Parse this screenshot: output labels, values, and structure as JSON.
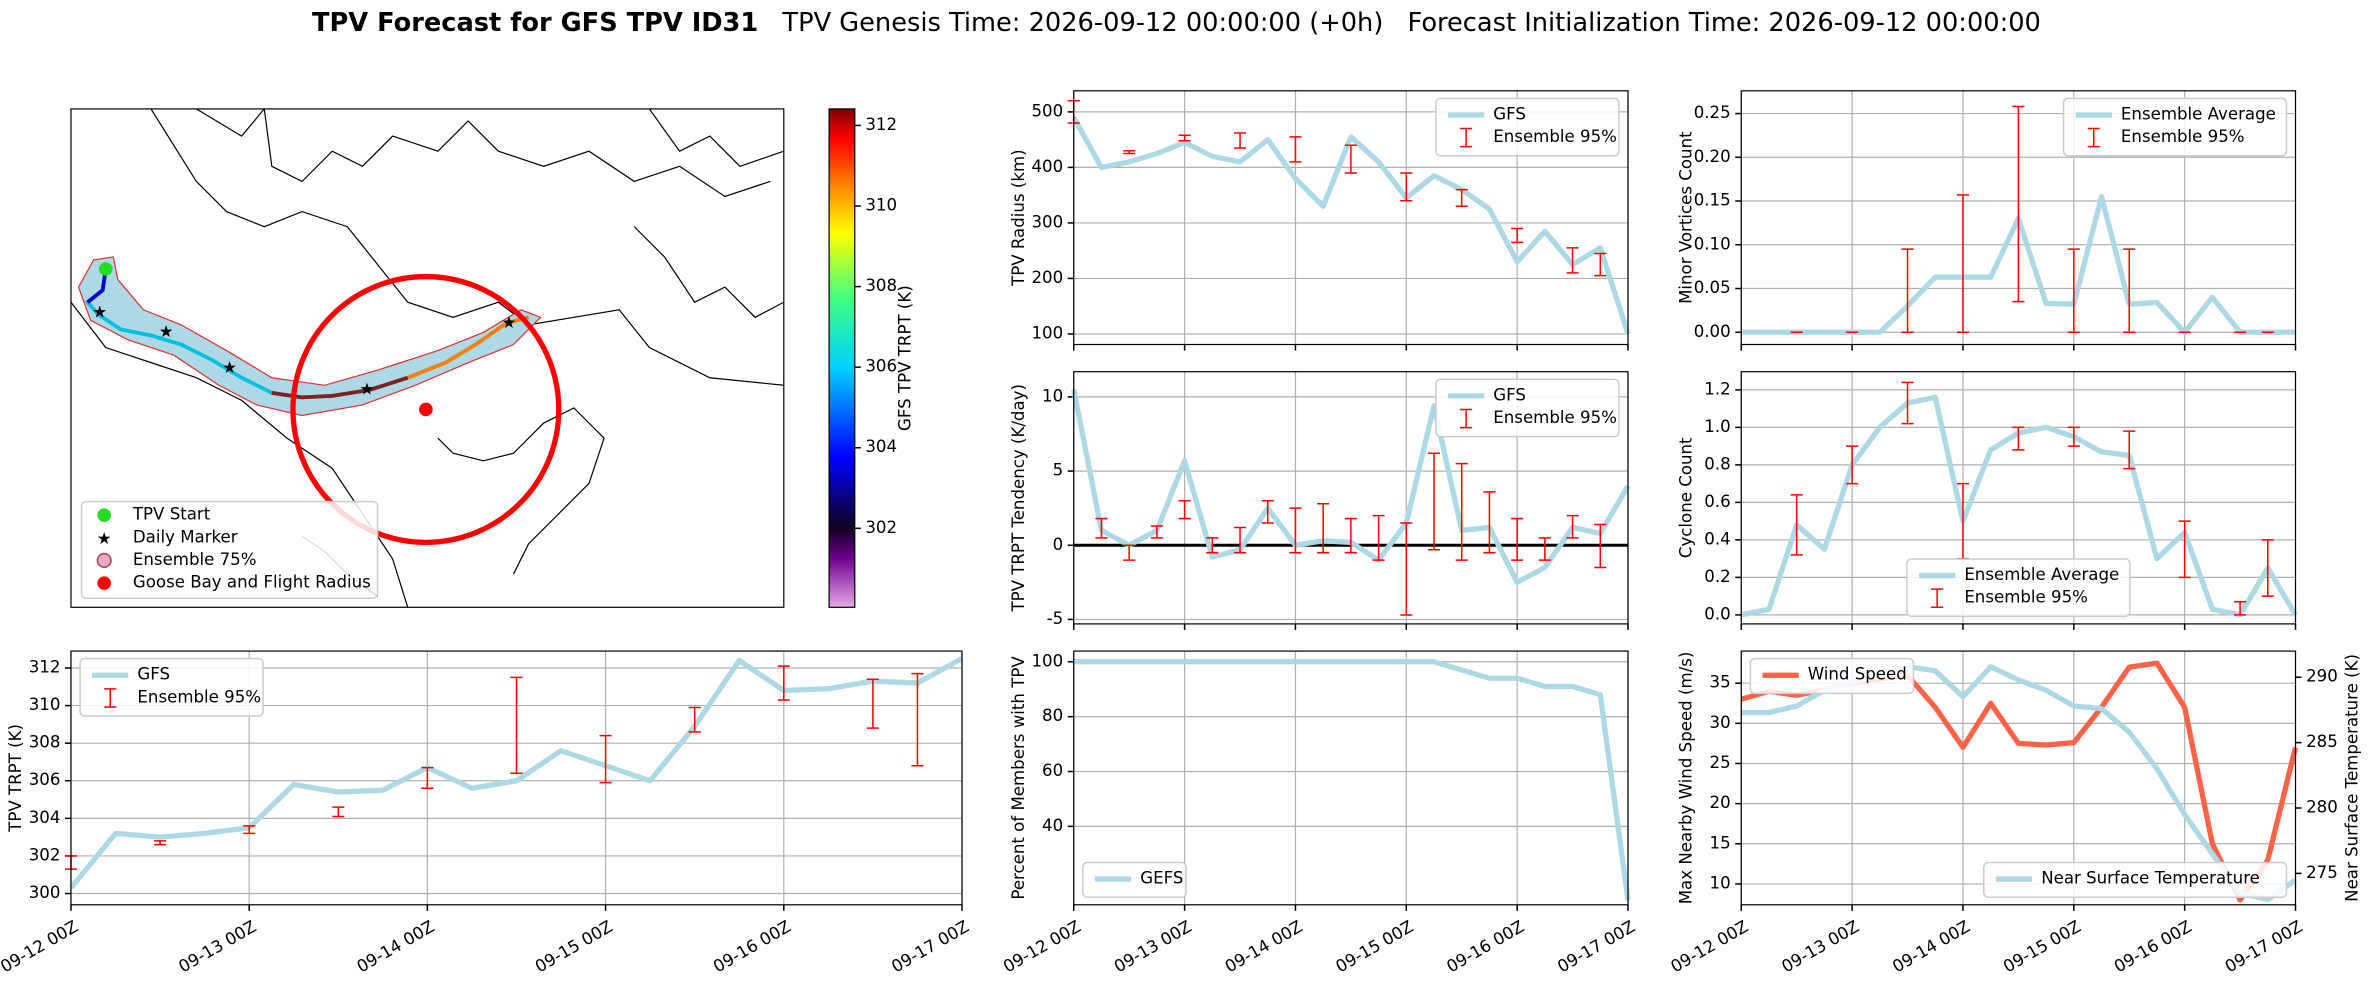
{
  "title": "TPV Forecast for GFS TPV ID31",
  "subtitle": [
    "TPV Genesis Time: 2026-09-12 00:00:00 (+0h)",
    "Forecast Initialization Time: 2026-09-12 00:00:00"
  ],
  "map": {
    "legend": [
      "TPV Start",
      "Daily Marker",
      "Ensemble 75%",
      "Goose Bay and Flight Radius"
    ],
    "colorbar": {
      "label": "GFS TPV TRPT (K)",
      "lim": [
        300.04,
        312.41
      ],
      "ticks": [
        302,
        304,
        306,
        308,
        310,
        312
      ]
    }
  },
  "chart_data": [
    {
      "type": "line",
      "ylabel": "TPV TRPT (K)",
      "legend": "upper left",
      "grid": true,
      "x": [
        "09-12 00Z",
        null,
        null,
        null,
        "09-13 00Z",
        null,
        null,
        null,
        "09-14 00Z",
        null,
        null,
        null,
        "09-15 00Z",
        null,
        null,
        null,
        "09-16 00Z",
        null,
        null,
        null,
        "09-17 00Z"
      ],
      "ylim": [
        299.4,
        312.9
      ],
      "yticks": [
        300,
        302,
        304,
        306,
        308,
        310,
        312
      ],
      "series": [
        {
          "name": "GFS",
          "color": "#add8e6",
          "values": [
            300.3,
            303.2,
            303.0,
            303.2,
            303.5,
            305.8,
            305.4,
            305.5,
            306.7,
            305.6,
            306.0,
            307.6,
            306.8,
            306.0,
            308.9,
            312.4,
            310.8,
            310.9,
            311.3,
            311.2,
            312.5
          ]
        },
        {
          "name": "Ensemble 95%",
          "color": "#ff0000",
          "low": [
            301.3,
            null,
            302.6,
            null,
            303.2,
            null,
            304.1,
            null,
            305.6,
            null,
            306.4,
            null,
            305.9,
            null,
            308.6,
            null,
            310.3,
            null,
            308.8,
            306.8,
            null
          ],
          "high": [
            302.0,
            null,
            302.8,
            null,
            303.6,
            null,
            304.6,
            null,
            306.7,
            null,
            311.5,
            null,
            308.4,
            null,
            309.9,
            null,
            312.1,
            null,
            311.4,
            311.7,
            null
          ]
        }
      ]
    },
    {
      "type": "line",
      "ylabel": "TPV Radius (km)",
      "legend": "upper right",
      "grid": true,
      "sharex": 3,
      "ylim": [
        81,
        538
      ],
      "yticks": [
        100,
        200,
        300,
        400,
        500
      ],
      "series": [
        {
          "name": "GFS",
          "color": "#add8e6",
          "values": [
            490,
            400,
            410,
            425,
            445,
            420,
            410,
            450,
            380,
            330,
            455,
            410,
            345,
            385,
            360,
            325,
            230,
            285,
            225,
            255,
            100
          ]
        },
        {
          "name": "Ensemble 95%",
          "color": "#ff0000",
          "low": [
            480,
            null,
            425,
            null,
            448,
            null,
            435,
            null,
            410,
            null,
            390,
            null,
            340,
            null,
            330,
            null,
            265,
            null,
            210,
            205,
            null
          ],
          "high": [
            520,
            null,
            430,
            null,
            458,
            null,
            462,
            null,
            455,
            null,
            440,
            null,
            390,
            null,
            360,
            null,
            290,
            null,
            255,
            245,
            null
          ]
        }
      ]
    },
    {
      "type": "line",
      "ylabel": "TPV TRPT Tendency (K/day)",
      "legend": "upper right",
      "grid": true,
      "sharex": 3,
      "hline": 0,
      "ylim": [
        -5.3,
        11.7
      ],
      "yticks": [
        -5,
        0,
        5,
        10
      ],
      "series": [
        {
          "name": "GFS",
          "color": "#add8e6",
          "values": [
            10.5,
            1,
            0,
            1,
            5.7,
            -0.8,
            -0.3,
            2.5,
            0,
            0.3,
            0.2,
            -1,
            1.5,
            9.4,
            1,
            1.2,
            -2.5,
            -1.5,
            1.2,
            0.8,
            4
          ]
        },
        {
          "name": "Ensemble 95%",
          "color": "#ff0000",
          "low": [
            null,
            0.5,
            -1,
            0.5,
            1.8,
            -0.5,
            -0.5,
            1.5,
            -0.5,
            -0.5,
            -0.5,
            -1,
            -4.7,
            -0.3,
            -1,
            -0.5,
            -1,
            -1,
            0.5,
            -1.5,
            null
          ],
          "high": [
            null,
            1.8,
            0,
            1.3,
            3,
            0.5,
            1.2,
            3,
            2.5,
            2.8,
            1.8,
            2,
            1.5,
            6.2,
            5.5,
            3.6,
            1.8,
            0.5,
            2,
            1.4,
            null
          ]
        }
      ]
    },
    {
      "type": "line",
      "ylabel": "Percent of Members with TPV",
      "legend": "lower left",
      "grid": true,
      "x": [
        "09-12 00Z",
        null,
        null,
        null,
        "09-13 00Z",
        null,
        null,
        null,
        "09-14 00Z",
        null,
        null,
        null,
        "09-15 00Z",
        null,
        null,
        null,
        "09-16 00Z",
        null,
        null,
        null,
        "09-17 00Z"
      ],
      "ylim": [
        11.4,
        103.9
      ],
      "yticks": [
        40,
        60,
        80,
        100
      ],
      "series": [
        {
          "name": "GEFS",
          "color": "#add8e6",
          "values": [
            100,
            100,
            100,
            100,
            100,
            100,
            100,
            100,
            100,
            100,
            100,
            100,
            100,
            100,
            97,
            94,
            94,
            91,
            91,
            88,
            13
          ]
        }
      ]
    },
    {
      "type": "line",
      "ylabel": "Minor Vortices Count",
      "legend": "upper right",
      "grid": true,
      "sharex": 6,
      "ylim": [
        -0.014,
        0.276
      ],
      "yticks": [
        {
          "value": 0,
          "label": "0.00"
        },
        0.05,
        {
          "value": 0.1,
          "label": "0.10"
        },
        0.15,
        {
          "value": 0.2,
          "label": "0.20"
        },
        0.25
      ],
      "series": [
        {
          "name": "Ensemble Average",
          "color": "#add8e6",
          "values": [
            0,
            0,
            0,
            0,
            0,
            0,
            0.03,
            0.063,
            0.063,
            0.063,
            0.13,
            0.033,
            0.032,
            0.155,
            0.032,
            0.034,
            0,
            0.04,
            0,
            0,
            0
          ]
        },
        {
          "name": "Ensemble 95%",
          "color": "#ff0000",
          "low": [
            null,
            null,
            0,
            null,
            0,
            null,
            0,
            null,
            0,
            null,
            0.035,
            null,
            0,
            null,
            0,
            null,
            0,
            null,
            0,
            0,
            null
          ],
          "high": [
            null,
            null,
            0,
            null,
            0,
            null,
            0.095,
            null,
            0.157,
            null,
            0.258,
            null,
            0.095,
            null,
            0.095,
            null,
            0,
            null,
            0,
            0,
            null
          ]
        }
      ]
    },
    {
      "type": "line",
      "ylabel": "Cyclone Count",
      "legend": "lower center",
      "grid": true,
      "sharex": 6,
      "ylim": [
        -0.048,
        1.297
      ],
      "yticks": [
        {
          "value": 0,
          "label": "0.0"
        },
        0.2,
        0.4,
        0.6,
        0.8,
        {
          "value": 1,
          "label": "1.0"
        },
        1.2
      ],
      "series": [
        {
          "name": "Ensemble Average",
          "color": "#add8e6",
          "values": [
            0,
            0.03,
            0.48,
            0.35,
            0.8,
            1.0,
            1.13,
            1.16,
            0.5,
            0.88,
            0.97,
            1.0,
            0.95,
            0.87,
            0.85,
            0.3,
            0.44,
            0.03,
            0,
            0.25,
            0
          ]
        },
        {
          "name": "Ensemble 95%",
          "color": "#ff0000",
          "low": [
            null,
            null,
            0.32,
            null,
            0.7,
            null,
            1.02,
            null,
            0.3,
            null,
            0.88,
            null,
            0.9,
            null,
            0.78,
            null,
            0.2,
            null,
            0,
            0.1,
            null
          ],
          "high": [
            null,
            null,
            0.64,
            null,
            0.9,
            null,
            1.24,
            null,
            0.7,
            null,
            1.0,
            null,
            1.0,
            null,
            0.98,
            null,
            0.5,
            null,
            0.07,
            0.4,
            null
          ]
        }
      ]
    },
    {
      "type": "line",
      "ylabel": "Max Nearby Wind Speed (m/s)",
      "ylabel_color": "#ff6347",
      "y2label": "Near Surface Temperature (K)",
      "y2label_color": "#4169e1",
      "grid": true,
      "x": [
        "09-12 00Z",
        null,
        null,
        null,
        "09-13 00Z",
        null,
        null,
        null,
        "09-14 00Z",
        null,
        null,
        null,
        "09-15 00Z",
        null,
        null,
        null,
        "09-16 00Z",
        null,
        null,
        null,
        "09-17 00Z"
      ],
      "ylim": [
        7.4,
        39
      ],
      "yticks": [
        10,
        15,
        20,
        25,
        30,
        35
      ],
      "y2lim": [
        272.6,
        292
      ],
      "y2ticks": [
        275,
        280,
        285,
        290
      ],
      "series": [
        {
          "name": "Wind Speed",
          "color": "#ff6347",
          "legend": "upper left",
          "values": [
            33,
            34,
            33.5,
            34.2,
            35,
            35.5,
            36,
            32,
            27,
            32.5,
            27.5,
            27.3,
            27.6,
            32,
            37,
            37.5,
            32,
            15,
            8,
            13,
            27
          ]
        },
        {
          "name": "Near Surface Temperature",
          "color": "#add8e6",
          "axis": "y2",
          "legend": "lower right",
          "values": [
            287.3,
            287.3,
            287.8,
            289,
            289.6,
            290.2,
            290.8,
            290.5,
            288.5,
            290.8,
            289.8,
            289,
            287.8,
            287.6,
            285.8,
            283,
            279.5,
            276.5,
            273.5,
            273,
            274.5
          ]
        }
      ]
    }
  ]
}
